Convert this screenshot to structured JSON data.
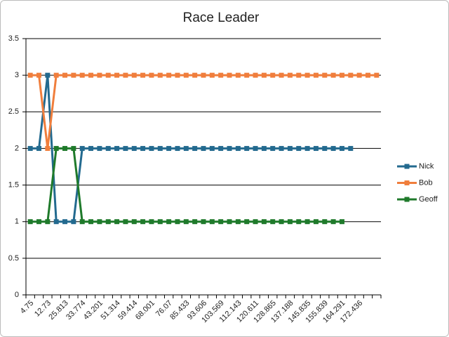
{
  "chart_data": {
    "type": "line",
    "title": "Race Leader",
    "categories": [
      "4.75",
      null,
      "12.73",
      null,
      "25.813",
      null,
      "33.774",
      null,
      "43.201",
      null,
      "51.314",
      null,
      "59.414",
      null,
      "68.001",
      null,
      "76.07",
      null,
      "85.433",
      null,
      "93.606",
      null,
      "103.569",
      null,
      "112.143",
      null,
      "120.611",
      null,
      "128.865",
      null,
      "137.188",
      null,
      "145.835",
      null,
      "155.839",
      null,
      "164.291",
      null,
      "172.436",
      null,
      null
    ],
    "series": [
      {
        "name": "Nick",
        "color": "#236a8f",
        "values": [
          2,
          2,
          3,
          1,
          1,
          1,
          2,
          2,
          2,
          2,
          2,
          2,
          2,
          2,
          2,
          2,
          2,
          2,
          2,
          2,
          2,
          2,
          2,
          2,
          2,
          2,
          2,
          2,
          2,
          2,
          2,
          2,
          2,
          2,
          2,
          2,
          2,
          2,
          null,
          null,
          null
        ]
      },
      {
        "name": "Bob",
        "color": "#f07e3c",
        "values": [
          3,
          3,
          2,
          3,
          3,
          3,
          3,
          3,
          3,
          3,
          3,
          3,
          3,
          3,
          3,
          3,
          3,
          3,
          3,
          3,
          3,
          3,
          3,
          3,
          3,
          3,
          3,
          3,
          3,
          3,
          3,
          3,
          3,
          3,
          3,
          3,
          3,
          3,
          3,
          3,
          3
        ]
      },
      {
        "name": "Geoff",
        "color": "#1f7a2b",
        "values": [
          1,
          1,
          1,
          2,
          2,
          2,
          1,
          1,
          1,
          1,
          1,
          1,
          1,
          1,
          1,
          1,
          1,
          1,
          1,
          1,
          1,
          1,
          1,
          1,
          1,
          1,
          1,
          1,
          1,
          1,
          1,
          1,
          1,
          1,
          1,
          1,
          1,
          null,
          null,
          null,
          null
        ]
      }
    ],
    "ylim": [
      0,
      3.5
    ],
    "yticks": [
      0,
      0.5,
      1,
      1.5,
      2,
      2.5,
      3,
      3.5
    ],
    "grid": true,
    "legend": "right"
  }
}
